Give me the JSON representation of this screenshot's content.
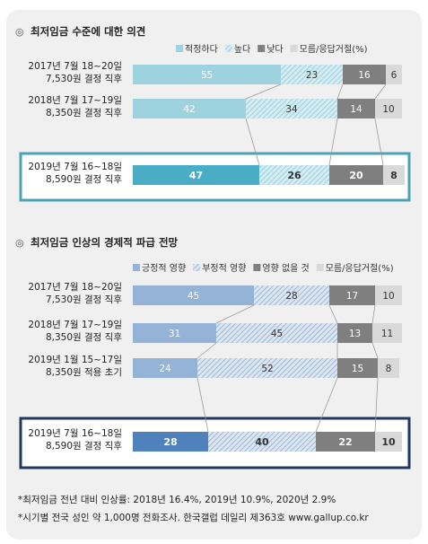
{
  "chart_data": [
    {
      "type": "bar",
      "stacked": true,
      "orientation": "horizontal",
      "title": "최저임금 수준에 대한 의견",
      "legend": [
        "적정하다",
        "높다",
        "낮다",
        "모름/응답거절(%)"
      ],
      "categories": [
        [
          "2017년 7월 18~20일",
          "7,530원 결정 직후"
        ],
        [
          "2018년 7월 17~19일",
          "8,350원 결정 직후"
        ],
        [
          "2019년 7월 16~18일",
          "8,590원 결정 직후"
        ]
      ],
      "series": [
        {
          "name": "적정하다",
          "values": [
            55,
            42,
            47
          ]
        },
        {
          "name": "높다",
          "values": [
            23,
            34,
            26
          ]
        },
        {
          "name": "낮다",
          "values": [
            16,
            14,
            20
          ]
        },
        {
          "name": "모름/응답거절(%)",
          "values": [
            6,
            10,
            8
          ]
        }
      ],
      "xlim": [
        0,
        100
      ],
      "highlight_index": 2,
      "colors": {
        "s0": "#9fd2df",
        "s0_highlight": "#4bacc6",
        "s1": "#cfe7ee",
        "s1_hatch": "#8ccbdc",
        "s2": "#7f7f7f",
        "s3": "#d9d9d9",
        "highlight_border": "#4aa3b5"
      }
    },
    {
      "type": "bar",
      "stacked": true,
      "orientation": "horizontal",
      "title": "최저임금 인상의 경제적 파급 전망",
      "legend": [
        "긍정적 영향",
        "부정적 영향",
        "영향 없을 것",
        "모름/응답거절(%)"
      ],
      "categories": [
        [
          "2017년 7월 18~20일",
          "7,530원 결정 직후"
        ],
        [
          "2018년 7월 17~19일",
          "8,350원 결정 직후"
        ],
        [
          "2019년 1월 15~17일",
          "8,350원 적용 초기"
        ],
        [
          "2019년 7월 16~18일",
          "8,590원 결정 직후"
        ]
      ],
      "series": [
        {
          "name": "긍정적 영향",
          "values": [
            45,
            31,
            24,
            28
          ]
        },
        {
          "name": "부정적 영향",
          "values": [
            28,
            45,
            52,
            40
          ]
        },
        {
          "name": "영향 없을 것",
          "values": [
            17,
            13,
            15,
            22
          ]
        },
        {
          "name": "모름/응답거절(%)",
          "values": [
            10,
            11,
            8,
            10
          ]
        }
      ],
      "xlim": [
        0,
        100
      ],
      "highlight_index": 3,
      "colors": {
        "s0": "#95b3d7",
        "s0_highlight": "#4f81bd",
        "s1": "#dce6f1",
        "s1_hatch": "#95b3d7",
        "s2": "#7f7f7f",
        "s3": "#d9d9d9",
        "highlight_border": "#1f3864"
      }
    }
  ],
  "footnotes": [
    "*최저임금 전년 대비 인상률: 2018년 16.4%, 2019년 10.9%, 2020년 2.9%",
    "*시기별 전국 성인 약 1,000명 전화조사. 한국갤럽 데일리 제363호 www.gallup.co.kr"
  ]
}
